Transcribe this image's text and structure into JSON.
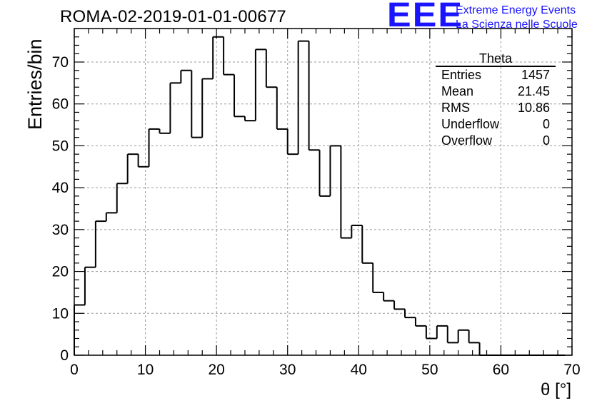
{
  "chart_data": {
    "type": "bar",
    "title": "ROMA-02-2019-01-01-00677",
    "xlabel": "θ [°]",
    "ylabel": "Entries/bin",
    "xlim": [
      0,
      70
    ],
    "ylim": [
      0,
      78
    ],
    "bin_width": 1.5,
    "x_ticks": [
      0,
      10,
      20,
      30,
      40,
      50,
      60,
      70
    ],
    "y_ticks": [
      0,
      10,
      20,
      30,
      40,
      50,
      60,
      70
    ],
    "grid": true,
    "values": [
      12,
      21,
      32,
      34,
      41,
      48,
      45,
      54,
      53,
      65,
      68,
      52,
      66,
      76,
      67,
      57,
      56,
      73,
      64,
      54,
      48,
      75,
      49,
      38,
      50,
      28,
      31,
      22,
      15,
      13,
      11,
      9,
      7,
      4,
      7,
      3,
      6,
      3,
      0,
      0,
      0,
      0,
      0,
      0,
      0,
      0
    ],
    "stats": {
      "name": "Theta",
      "rows": [
        {
          "label": "Entries",
          "value": "1457"
        },
        {
          "label": "Mean",
          "value": "21.45"
        },
        {
          "label": "RMS",
          "value": "10.86"
        },
        {
          "label": "Underflow",
          "value": "0"
        },
        {
          "label": "Overflow",
          "value": "0"
        }
      ]
    }
  },
  "logo": {
    "mark": "EEE",
    "line1": "Extreme Energy Events",
    "line2": "La Scienza nelle Scuole",
    "color": "#1a14ff"
  }
}
